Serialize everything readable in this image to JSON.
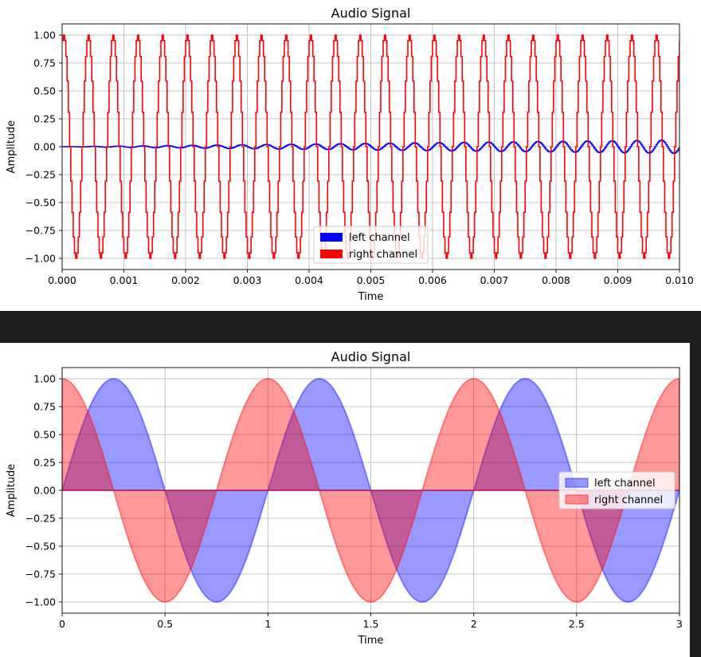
{
  "chart_data": [
    {
      "type": "line",
      "title": "Audio Signal",
      "xlabel": "Time",
      "ylabel": "Amplitude",
      "xlim": [
        0,
        0.01
      ],
      "ylim": [
        -1.1,
        1.1
      ],
      "xticks": [
        0,
        0.001,
        0.002,
        0.003,
        0.004,
        0.005,
        0.006,
        0.007,
        0.008,
        0.009,
        0.01
      ],
      "xtick_labels": [
        "0.000",
        "0.001",
        "0.002",
        "0.003",
        "0.004",
        "0.005",
        "0.006",
        "0.007",
        "0.008",
        "0.009",
        "0.010"
      ],
      "yticks": [
        -1,
        -0.75,
        -0.5,
        -0.25,
        0,
        0.25,
        0.5,
        0.75,
        1
      ],
      "ytick_labels": [
        "−1.00",
        "−0.75",
        "−0.50",
        "−0.25",
        "0.00",
        "0.25",
        "0.50",
        "0.75",
        "1.00"
      ],
      "grid": true,
      "legend_position": "lower-center",
      "step": true,
      "series": [
        {
          "name": "left channel",
          "color": "#0000ff",
          "frequency_hz": 2500,
          "amplitude_start": 0.0,
          "amplitude_end": 0.06,
          "sample_step": 2e-05
        },
        {
          "name": "right channel",
          "color": "#ff0000",
          "frequency_hz": 2500,
          "amplitude": 1.0,
          "sample_step": 2e-05
        }
      ]
    },
    {
      "type": "area",
      "title": "Audio Signal",
      "xlabel": "Time",
      "ylabel": "Amplitude",
      "xlim": [
        0,
        3
      ],
      "ylim": [
        -1.1,
        1.1
      ],
      "xticks": [
        0,
        0.5,
        1,
        1.5,
        2,
        2.5,
        3
      ],
      "xtick_labels": [
        "0",
        "0.5",
        "1",
        "1.5",
        "2",
        "2.5",
        "3"
      ],
      "yticks": [
        -1,
        -0.75,
        -0.5,
        -0.25,
        0,
        0.25,
        0.5,
        0.75,
        1
      ],
      "ytick_labels": [
        "−1.00",
        "−0.75",
        "−0.50",
        "−0.25",
        "0.00",
        "0.25",
        "0.50",
        "0.75",
        "1.00"
      ],
      "grid": true,
      "legend_position": "center-right",
      "series": [
        {
          "name": "left channel",
          "color": "#0000ff",
          "function": "sin",
          "frequency_hz": 1,
          "amplitude": 1.0,
          "fill_alpha": 0.4
        },
        {
          "name": "right channel",
          "color": "#ff0000",
          "function": "cos",
          "frequency_hz": 1,
          "amplitude": 1.0,
          "fill_alpha": 0.4
        }
      ]
    }
  ]
}
